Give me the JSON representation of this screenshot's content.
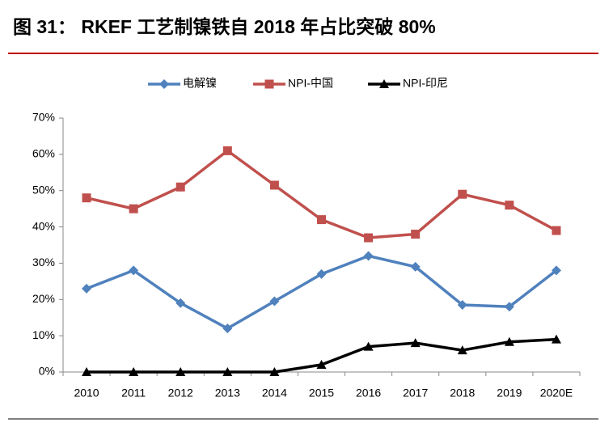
{
  "chart_data": {
    "type": "line",
    "title": "图 31： RKEF 工艺制镍铁自 2018 年占比突破 80%",
    "categories": [
      "2010",
      "2011",
      "2012",
      "2013",
      "2014",
      "2015",
      "2016",
      "2017",
      "2018",
      "2019",
      "2020E"
    ],
    "series": [
      {
        "name": "电解镍",
        "color": "#4f81bd",
        "marker": "diamond",
        "values": [
          23,
          28,
          19,
          12,
          19.5,
          27,
          32,
          29,
          18.5,
          18,
          28
        ]
      },
      {
        "name": "NPI-中国",
        "color": "#c0504d",
        "marker": "square",
        "values": [
          48,
          45,
          51,
          61,
          51.5,
          42,
          37,
          38,
          49,
          46,
          39
        ]
      },
      {
        "name": "NPI-印尼",
        "color": "#000000",
        "marker": "triangle",
        "values": [
          0,
          0,
          0,
          0,
          0,
          2,
          7,
          8,
          6,
          8.3,
          9
        ]
      }
    ],
    "ylim": [
      0,
      70
    ],
    "yticks": [
      {
        "value": 0,
        "label": "0%"
      },
      {
        "value": 10,
        "label": "10%"
      },
      {
        "value": 20,
        "label": "20%"
      },
      {
        "value": 30,
        "label": "30%"
      },
      {
        "value": 40,
        "label": "40%"
      },
      {
        "value": 50,
        "label": "50%"
      },
      {
        "value": 60,
        "label": "60%"
      },
      {
        "value": 70,
        "label": "70%"
      }
    ],
    "grid": false,
    "legend": "top"
  }
}
